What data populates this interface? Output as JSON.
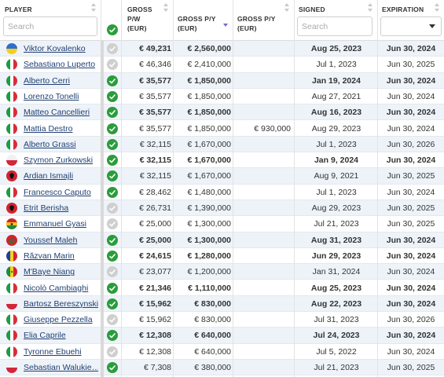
{
  "header": {
    "player": "PLAYER",
    "gross_pw": "GROSS\nP/W\n(EUR)",
    "gross_pw_l1": "GROSS",
    "gross_pw_l2": "P/W",
    "gross_pw_l3": "(EUR)",
    "gross_py_l1": "GROSS P/Y",
    "gross_py_l2": "(EUR)",
    "gross_py2_l1": "GROSS P/Y",
    "gross_py2_l2": "(EUR)",
    "signed": "SIGNED",
    "expiration": "EXPIRATION",
    "player_search_placeholder": "Search",
    "signed_search_placeholder": "Search"
  },
  "colors": {
    "row_alt": "#eef3f9",
    "link": "#1f3f73",
    "status_ok": "#2a9d3b",
    "status_na": "#cfcfcf",
    "sort_active": "#7b61c9"
  },
  "rows": [
    {
      "name": "Viktor Kovalenko",
      "flag": "ukraine",
      "status": "na",
      "pw": "€ 49,231",
      "py": "€ 2,560,000",
      "py2": "",
      "signed": "Aug 25, 2023",
      "exp": "Jun 30, 2024",
      "bold": true
    },
    {
      "name": "Sebastiano Luperto",
      "flag": "italy",
      "status": "na",
      "pw": "€ 46,346",
      "py": "€ 2,410,000",
      "py2": "",
      "signed": "Jul 1, 2023",
      "exp": "Jun 30, 2025",
      "bold": false
    },
    {
      "name": "Alberto Cerri",
      "flag": "italy",
      "status": "ok",
      "pw": "€ 35,577",
      "py": "€ 1,850,000",
      "py2": "",
      "signed": "Jan 19, 2024",
      "exp": "Jun 30, 2024",
      "bold": true
    },
    {
      "name": "Lorenzo Tonelli",
      "flag": "italy",
      "status": "ok",
      "pw": "€ 35,577",
      "py": "€ 1,850,000",
      "py2": "",
      "signed": "Aug 27, 2021",
      "exp": "Jun 30, 2024",
      "bold": false
    },
    {
      "name": "Matteo Cancellieri",
      "flag": "italy",
      "status": "ok",
      "pw": "€ 35,577",
      "py": "€ 1,850,000",
      "py2": "",
      "signed": "Aug 16, 2023",
      "exp": "Jun 30, 2024",
      "bold": true
    },
    {
      "name": "Mattia Destro",
      "flag": "italy",
      "status": "ok",
      "pw": "€ 35,577",
      "py": "€ 1,850,000",
      "py2": "€ 930,000",
      "signed": "Aug 29, 2023",
      "exp": "Jun 30, 2024",
      "bold": false
    },
    {
      "name": "Alberto Grassi",
      "flag": "italy",
      "status": "ok",
      "pw": "€ 32,115",
      "py": "€ 1,670,000",
      "py2": "",
      "signed": "Jul 1, 2023",
      "exp": "Jun 30, 2026",
      "bold": false
    },
    {
      "name": "Szymon Zurkowski",
      "flag": "poland",
      "status": "ok",
      "pw": "€ 32,115",
      "py": "€ 1,670,000",
      "py2": "",
      "signed": "Jan 9, 2024",
      "exp": "Jun 30, 2024",
      "bold": true
    },
    {
      "name": "Ardian Ismajli",
      "flag": "albania",
      "status": "ok",
      "pw": "€ 32,115",
      "py": "€ 1,670,000",
      "py2": "",
      "signed": "Aug 9, 2021",
      "exp": "Jun 30, 2025",
      "bold": false
    },
    {
      "name": "Francesco Caputo",
      "flag": "italy",
      "status": "ok",
      "pw": "€ 28,462",
      "py": "€ 1,480,000",
      "py2": "",
      "signed": "Jul 1, 2023",
      "exp": "Jun 30, 2024",
      "bold": false
    },
    {
      "name": "Etrit Berisha",
      "flag": "albania",
      "status": "na",
      "pw": "€ 26,731",
      "py": "€ 1,390,000",
      "py2": "",
      "signed": "Aug 29, 2023",
      "exp": "Jun 30, 2025",
      "bold": false
    },
    {
      "name": "Emmanuel Gyasi",
      "flag": "ghana",
      "status": "na",
      "pw": "€ 25,000",
      "py": "€ 1,300,000",
      "py2": "",
      "signed": "Jul 21, 2023",
      "exp": "Jun 30, 2025",
      "bold": false
    },
    {
      "name": "Youssef Maleh",
      "flag": "morocco",
      "status": "ok",
      "pw": "€ 25,000",
      "py": "€ 1,300,000",
      "py2": "",
      "signed": "Aug 31, 2023",
      "exp": "Jun 30, 2024",
      "bold": true
    },
    {
      "name": "Răzvan Marin",
      "flag": "romania",
      "status": "ok",
      "pw": "€ 24,615",
      "py": "€ 1,280,000",
      "py2": "",
      "signed": "Jun 29, 2023",
      "exp": "Jun 30, 2024",
      "bold": true
    },
    {
      "name": "M'Baye Niang",
      "flag": "senegal",
      "status": "na",
      "pw": "€ 23,077",
      "py": "€ 1,200,000",
      "py2": "",
      "signed": "Jan 31, 2024",
      "exp": "Jun 30, 2024",
      "bold": false
    },
    {
      "name": "Nicolò Cambiaghi",
      "flag": "italy",
      "status": "ok",
      "pw": "€ 21,346",
      "py": "€ 1,110,000",
      "py2": "",
      "signed": "Aug 25, 2023",
      "exp": "Jun 30, 2024",
      "bold": true
    },
    {
      "name": "Bartosz Bereszynski",
      "flag": "poland",
      "status": "ok",
      "pw": "€ 15,962",
      "py": "€ 830,000",
      "py2": "",
      "signed": "Aug 22, 2023",
      "exp": "Jun 30, 2024",
      "bold": true
    },
    {
      "name": "Giuseppe Pezzella",
      "flag": "italy",
      "status": "na",
      "pw": "€ 15,962",
      "py": "€ 830,000",
      "py2": "",
      "signed": "Jul 31, 2023",
      "exp": "Jun 30, 2026",
      "bold": false
    },
    {
      "name": "Elia Caprile",
      "flag": "italy",
      "status": "ok",
      "pw": "€ 12,308",
      "py": "€ 640,000",
      "py2": "",
      "signed": "Jul 24, 2023",
      "exp": "Jun 30, 2024",
      "bold": true
    },
    {
      "name": "Tyronne Ebuehi",
      "flag": "italy",
      "status": "na",
      "pw": "€ 12,308",
      "py": "€ 640,000",
      "py2": "",
      "signed": "Jul 5, 2022",
      "exp": "Jun 30, 2024",
      "bold": false
    },
    {
      "name": "Sebastian Walukie…",
      "flag": "poland",
      "status": "ok",
      "pw": "€ 7,308",
      "py": "€ 380,000",
      "py2": "",
      "signed": "Jul 21, 2023",
      "exp": "Jun 30, 2025",
      "bold": false
    }
  ]
}
